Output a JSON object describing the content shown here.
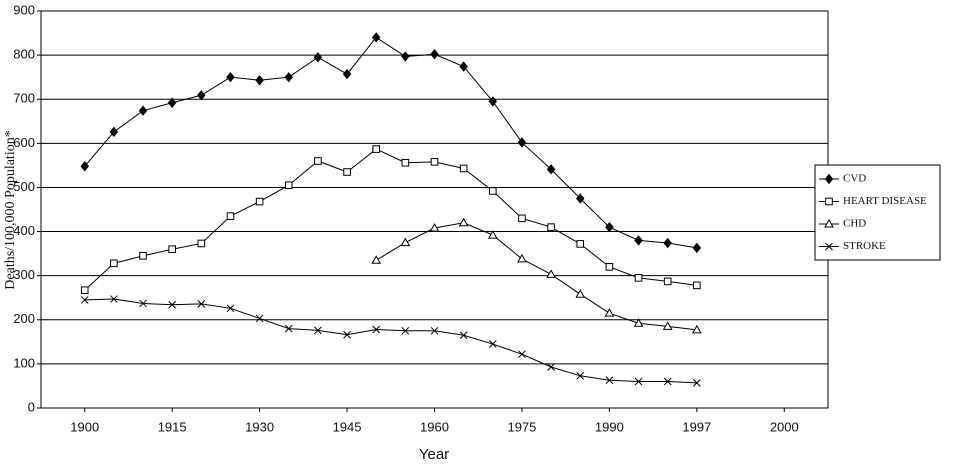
{
  "chart_data": {
    "type": "line",
    "x_label": "Year",
    "y_label": "Deaths/100,000 Population*",
    "categories": [
      null,
      "1900",
      null,
      null,
      "1915",
      null,
      null,
      "1930",
      null,
      null,
      "1945",
      null,
      null,
      "1960",
      null,
      null,
      "1975",
      null,
      null,
      "1990",
      null,
      null,
      "1997",
      null,
      null,
      "2000",
      null
    ],
    "series": [
      {
        "name": "CVD",
        "color": "#000000",
        "marker": "diamond",
        "values": [
          null,
          548,
          626,
          674,
          692,
          709,
          750,
          743,
          750,
          795,
          757,
          840,
          797,
          802,
          774,
          695,
          602,
          541,
          475,
          410,
          380,
          374,
          363,
          null,
          null,
          null,
          null
        ]
      },
      {
        "name": "HEART DISEASE",
        "color": "#000000",
        "marker": "square",
        "values": [
          null,
          267,
          328,
          345,
          360,
          373,
          435,
          468,
          505,
          560,
          535,
          587,
          556,
          558,
          543,
          492,
          430,
          410,
          372,
          320,
          295,
          287,
          278,
          null,
          null,
          null,
          null
        ]
      },
      {
        "name": "CHD",
        "color": "#000000",
        "marker": "triangle",
        "values": [
          null,
          null,
          null,
          null,
          null,
          null,
          null,
          null,
          null,
          null,
          null,
          335,
          375,
          408,
          420,
          392,
          338,
          303,
          258,
          215,
          192,
          185,
          177,
          null,
          null,
          null,
          null
        ]
      },
      {
        "name": "STROKE",
        "color": "#000000",
        "marker": "x",
        "values": [
          null,
          245,
          247,
          237,
          234,
          236,
          226,
          203,
          180,
          176,
          166,
          178,
          175,
          175,
          165,
          145,
          122,
          93,
          73,
          63,
          60,
          60,
          57,
          null,
          null,
          null,
          null
        ]
      }
    ],
    "ylim": [
      0,
      900
    ],
    "yticks": [
      0,
      100,
      200,
      300,
      400,
      500,
      600,
      700,
      800,
      900
    ],
    "grid": true,
    "legend": "right"
  }
}
